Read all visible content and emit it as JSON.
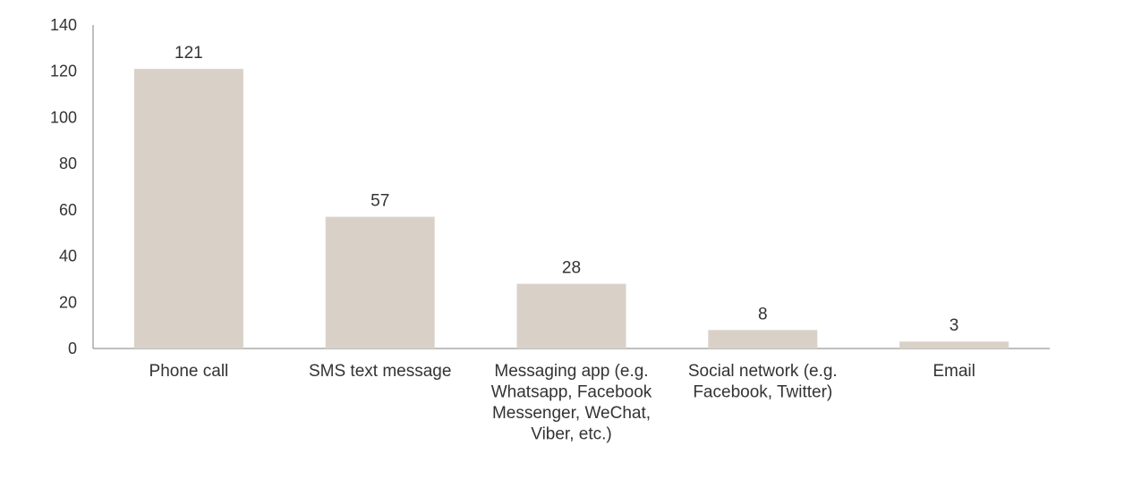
{
  "chart_data": {
    "type": "bar",
    "title": "",
    "xlabel": "",
    "ylabel": "",
    "categories": [
      [
        "Phone call"
      ],
      [
        "SMS text message"
      ],
      [
        "Messaging app (e.g.",
        "Whatsapp, Facebook",
        "Messenger, WeChat,",
        "Viber, etc.)"
      ],
      [
        "Social network (e.g.",
        "Facebook, Twitter)"
      ],
      [
        "Email"
      ]
    ],
    "values": [
      121,
      57,
      28,
      8,
      3
    ],
    "data_labels": [
      "121",
      "57",
      "28",
      "8",
      "3"
    ],
    "ylim": [
      0,
      140
    ],
    "yticks": [
      0,
      20,
      40,
      60,
      80,
      100,
      120,
      140
    ],
    "ytick_labels": [
      "0",
      "20",
      "40",
      "60",
      "80",
      "100",
      "120",
      "140"
    ],
    "grid": false,
    "legend": "none",
    "bar_color": "#d9d1c7",
    "axis_color": "#7f7f7f",
    "text_color": "#333333"
  }
}
